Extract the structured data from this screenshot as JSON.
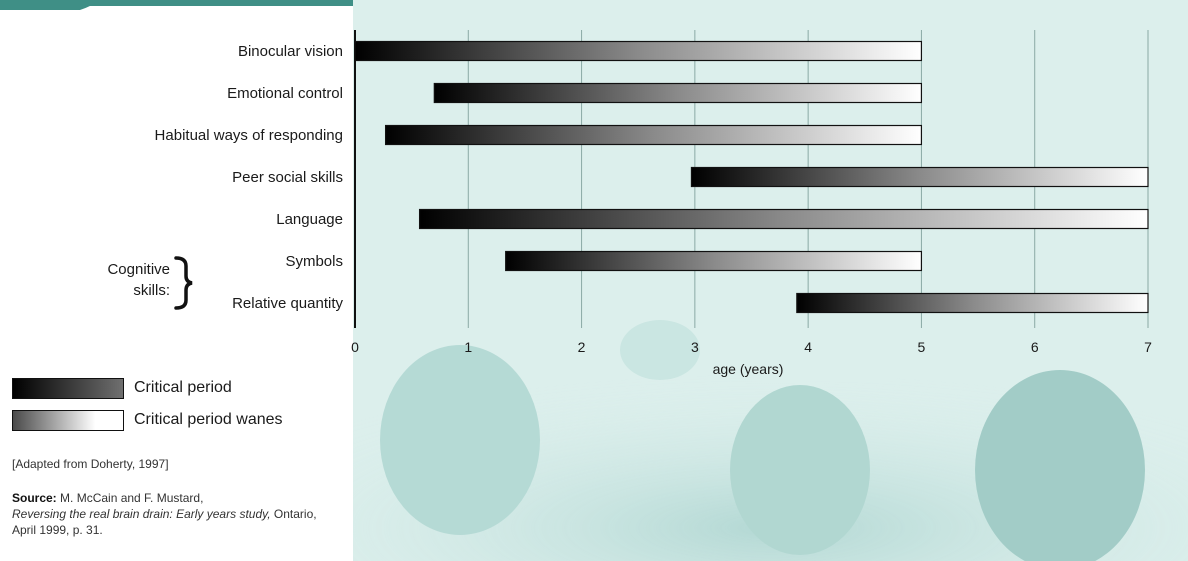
{
  "chart_data": {
    "type": "bar",
    "subtype": "floating-horizontal-gradient",
    "xlabel": "age (years)",
    "xlim": [
      0,
      7
    ],
    "x_ticks": [
      0,
      1,
      2,
      3,
      4,
      5,
      6,
      7
    ],
    "grid": "vertical",
    "categories": [
      "Binocular vision",
      "Emotional control",
      "Habitual ways of responding",
      "Peer social skills",
      "Language",
      "Symbols",
      "Relative quantity"
    ],
    "bars": [
      {
        "start": 0,
        "end": 5
      },
      {
        "start": 0.7,
        "end": 5
      },
      {
        "start": 0.27,
        "end": 5
      },
      {
        "start": 2.97,
        "end": 7
      },
      {
        "start": 0.57,
        "end": 7
      },
      {
        "start": 1.33,
        "end": 5
      },
      {
        "start": 3.9,
        "end": 7
      }
    ],
    "group_label": {
      "line1": "Cognitive",
      "line2": "skills:",
      "members": [
        "Symbols",
        "Relative quantity"
      ]
    },
    "legend": [
      {
        "label": "Critical period",
        "style": "black-to-grey"
      },
      {
        "label": "Critical period wanes",
        "style": "grey-to-white"
      }
    ],
    "colors": {
      "plot_background": "#dcefec",
      "gradient_dark": "#000000",
      "gradient_mid": "#808080",
      "gradient_light": "#ffffff"
    }
  },
  "notes": {
    "adapted": "[Adapted from Doherty, 1997]",
    "source_label": "Source:",
    "source_authors": "M. McCain and F. Mustard,",
    "source_title": "Reversing the real brain drain: Early years study,",
    "source_rest": "Ontario, April 1999, p. 31."
  }
}
